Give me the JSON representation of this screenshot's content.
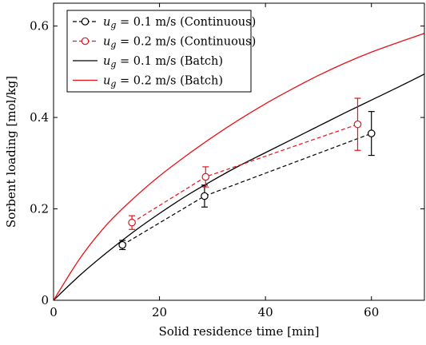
{
  "chart_data": {
    "type": "line",
    "xlabel": "Solid residence time [min]",
    "ylabel": "Sorbent loading [mol/kg]",
    "xlim": [
      0,
      70
    ],
    "ylim": [
      0,
      0.65
    ],
    "xticks": [
      0,
      20,
      40,
      60
    ],
    "yticks": [
      0,
      0.2,
      0.4,
      0.6
    ],
    "xtick_labels": [
      "0",
      "20",
      "40",
      "60"
    ],
    "ytick_labels": [
      "0",
      "0.2",
      "0.4",
      "0.6"
    ],
    "grid": false,
    "legend_position": "top-left",
    "series": [
      {
        "legend_pre": "u",
        "legend_sub": "g",
        "legend_post": " = 0.1 m/s (Continuous)",
        "kind": "points",
        "color": "#000000",
        "dashed": true,
        "x": [
          13,
          28.5,
          60
        ],
        "y": [
          0.121,
          0.228,
          0.365
        ],
        "err": [
          0.01,
          0.024,
          0.048
        ]
      },
      {
        "legend_pre": "u",
        "legend_sub": "g",
        "legend_post": " = 0.2 m/s (Continuous)",
        "kind": "points",
        "color": "#e8121a",
        "dashed": true,
        "x": [
          14.8,
          28.7,
          57.4
        ],
        "y": [
          0.17,
          0.27,
          0.385
        ],
        "err": [
          0.015,
          0.022,
          0.057
        ]
      },
      {
        "legend_pre": "u",
        "legend_sub": "g",
        "legend_post": " = 0.1 m/s (Batch)",
        "kind": "curve",
        "color": "#000000",
        "dashed": false,
        "x": [
          0,
          5,
          10,
          15,
          20,
          25,
          30,
          35,
          40,
          45,
          50,
          55,
          60,
          65,
          70
        ],
        "y": [
          0,
          0.055,
          0.104,
          0.149,
          0.19,
          0.228,
          0.262,
          0.294,
          0.323,
          0.352,
          0.381,
          0.41,
          0.438,
          0.466,
          0.495
        ]
      },
      {
        "legend_pre": "u",
        "legend_sub": "g",
        "legend_post": " = 0.2 m/s (Batch)",
        "kind": "curve",
        "color": "#e8121a",
        "dashed": false,
        "x": [
          0,
          5,
          10,
          15,
          20,
          25,
          30,
          35,
          40,
          45,
          50,
          55,
          60,
          65,
          70
        ],
        "y": [
          0,
          0.092,
          0.165,
          0.222,
          0.272,
          0.316,
          0.357,
          0.395,
          0.43,
          0.462,
          0.492,
          0.519,
          0.543,
          0.564,
          0.584
        ]
      }
    ]
  }
}
